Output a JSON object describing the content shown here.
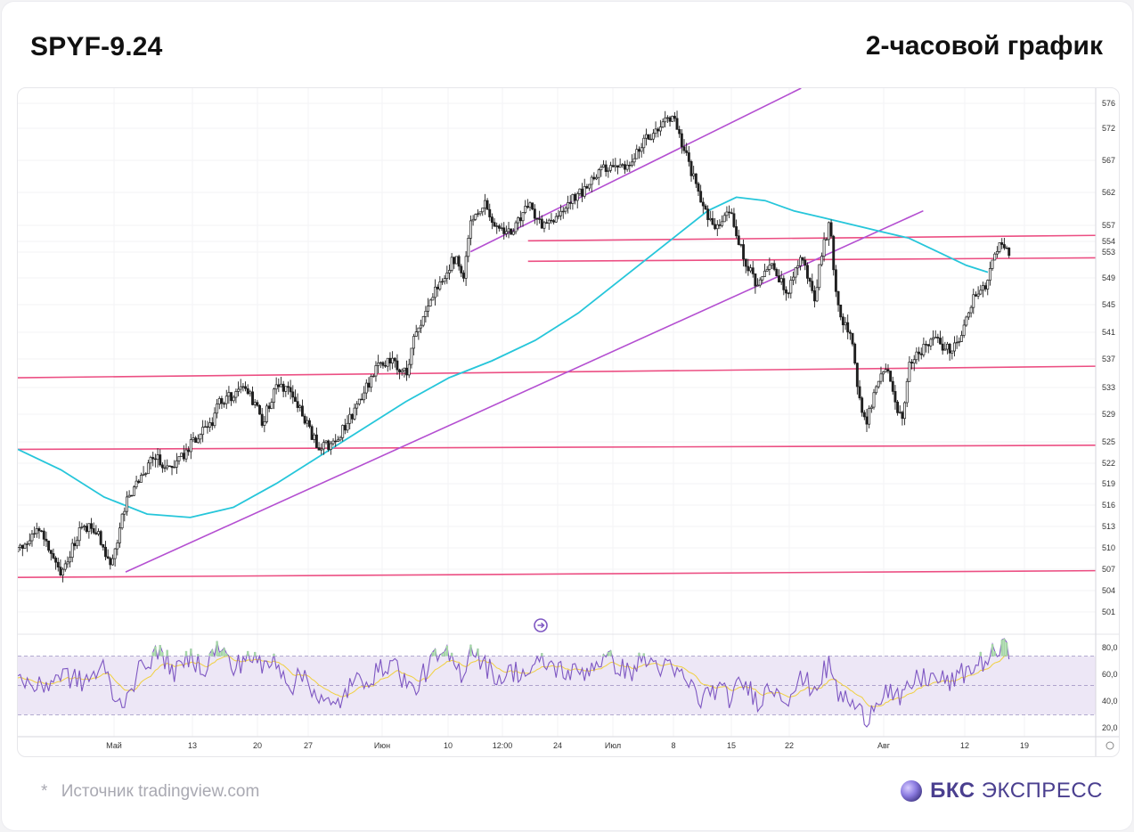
{
  "header": {
    "ticker": "SPYF-9.24",
    "timeframe": "2-часовой график"
  },
  "footer": {
    "source_star": "*",
    "source_text": "Источник tradingview.com",
    "brand_bold": "БКС",
    "brand_light": "ЭКСПРЕСС"
  },
  "colors": {
    "candles": "#1f1f1f",
    "ma_line": "#26c6da",
    "channel": "#b44fd1",
    "levels": "#ec4f83",
    "rsi_line": "#7e57c2",
    "rsi_signal": "#f0d040",
    "rsi_band": "#ede7f6",
    "brand": "#4a3f8f"
  },
  "chart_data": [
    {
      "type": "candlestick",
      "title": "",
      "instrument": "SPYF-9.24",
      "x_tick_labels": [
        "Май",
        "13",
        "20",
        "27",
        "Июн",
        "10",
        "12:00",
        "24",
        "Июл",
        "8",
        "15",
        "22",
        "Авг",
        "12",
        "19"
      ],
      "y_tick_labels": [
        "576",
        "572",
        "567",
        "562",
        "557",
        "554",
        "553",
        "549",
        "545",
        "541",
        "537",
        "533",
        "529",
        "525",
        "522",
        "519",
        "516",
        "513",
        "510",
        "507",
        "504",
        "501"
      ],
      "ylim": [
        498,
        578
      ],
      "price_path": [
        [
          0,
          510
        ],
        [
          3,
          513
        ],
        [
          6,
          507
        ],
        [
          9,
          514
        ],
        [
          11,
          513
        ],
        [
          13,
          508
        ],
        [
          15,
          517
        ],
        [
          17,
          521
        ],
        [
          19,
          524
        ],
        [
          21,
          522
        ],
        [
          23,
          524
        ],
        [
          25,
          527
        ],
        [
          27,
          529
        ],
        [
          28,
          532
        ],
        [
          30,
          533
        ],
        [
          32,
          534
        ],
        [
          34,
          529
        ],
        [
          36,
          534
        ],
        [
          38,
          534
        ],
        [
          40,
          529
        ],
        [
          42,
          525
        ],
        [
          44,
          526
        ],
        [
          46,
          529
        ],
        [
          48,
          533
        ],
        [
          50,
          537
        ],
        [
          52,
          538
        ],
        [
          54,
          536
        ],
        [
          55,
          541
        ],
        [
          57,
          546
        ],
        [
          58,
          548
        ],
        [
          60,
          552
        ],
        [
          61,
          553
        ],
        [
          62,
          550
        ],
        [
          63,
          559
        ],
        [
          65,
          561
        ],
        [
          67,
          557
        ],
        [
          69,
          557
        ],
        [
          71,
          561
        ],
        [
          73,
          558
        ],
        [
          75,
          559
        ],
        [
          77,
          562
        ],
        [
          79,
          563
        ],
        [
          81,
          566
        ],
        [
          83,
          567
        ],
        [
          85,
          566
        ],
        [
          87,
          570
        ],
        [
          89,
          572
        ],
        [
          91,
          574
        ],
        [
          93,
          568
        ],
        [
          95,
          562
        ],
        [
          97,
          557
        ],
        [
          99,
          560
        ],
        [
          100,
          557
        ],
        [
          101,
          553
        ],
        [
          103,
          549
        ],
        [
          105,
          552
        ],
        [
          107,
          548
        ],
        [
          109,
          553
        ],
        [
          111,
          547
        ],
        [
          112,
          555
        ],
        [
          113,
          558
        ],
        [
          114,
          546
        ],
        [
          116,
          541
        ],
        [
          117,
          533
        ],
        [
          118,
          529
        ],
        [
          120,
          536
        ],
        [
          121,
          537
        ],
        [
          122,
          532
        ],
        [
          123,
          529
        ],
        [
          124,
          537
        ],
        [
          126,
          540
        ],
        [
          128,
          541
        ],
        [
          130,
          539
        ],
        [
          132,
          544
        ],
        [
          133,
          547
        ],
        [
          134,
          548
        ],
        [
          135,
          550
        ],
        [
          136,
          554
        ],
        [
          137,
          555
        ],
        [
          138,
          553
        ]
      ],
      "moving_average": [
        [
          0,
          525
        ],
        [
          6,
          522
        ],
        [
          12,
          518
        ],
        [
          18,
          515.5
        ],
        [
          24,
          515
        ],
        [
          30,
          516.5
        ],
        [
          36,
          520
        ],
        [
          42,
          524
        ],
        [
          48,
          528
        ],
        [
          54,
          532
        ],
        [
          60,
          535.5
        ],
        [
          66,
          538
        ],
        [
          72,
          541
        ],
        [
          78,
          545
        ],
        [
          84,
          550
        ],
        [
          90,
          555
        ],
        [
          96,
          560
        ],
        [
          100,
          562
        ],
        [
          104,
          561.5
        ],
        [
          108,
          560
        ],
        [
          112,
          559
        ],
        [
          116,
          558
        ],
        [
          120,
          557
        ],
        [
          124,
          556
        ],
        [
          128,
          554
        ],
        [
          132,
          552
        ],
        [
          135,
          551
        ]
      ],
      "channel_lines": [
        {
          "from": [
            15,
            507
          ],
          "to": [
            126,
            560
          ]
        },
        {
          "from": [
            63,
            554
          ],
          "to": [
            109,
            578
          ]
        }
      ],
      "horizontal_levels": [
        {
          "from": [
            -1,
            535.5
          ],
          "to": [
            150,
            537.2
          ]
        },
        {
          "from": [
            -1,
            525
          ],
          "to": [
            150,
            525.6
          ]
        },
        {
          "from": [
            -1,
            506.2
          ],
          "to": [
            150,
            507.2
          ]
        },
        {
          "from": [
            71,
            555.6
          ],
          "to": [
            150,
            556.4
          ]
        },
        {
          "from": [
            71,
            552.6
          ],
          "to": [
            150,
            553.1
          ]
        }
      ]
    },
    {
      "type": "line",
      "title": "",
      "indicator": "rsi",
      "y_tick_labels": [
        "80,0",
        "60,0",
        "40,0",
        "20,0"
      ],
      "ylim": [
        15,
        85
      ],
      "band": [
        30,
        70
      ],
      "midline": 50,
      "values": [
        [
          0,
          55
        ],
        [
          3,
          48
        ],
        [
          6,
          58
        ],
        [
          9,
          52
        ],
        [
          12,
          62
        ],
        [
          14,
          35
        ],
        [
          16,
          52
        ],
        [
          18,
          68
        ],
        [
          20,
          72
        ],
        [
          22,
          58
        ],
        [
          24,
          70
        ],
        [
          26,
          62
        ],
        [
          28,
          78
        ],
        [
          30,
          60
        ],
        [
          32,
          72
        ],
        [
          34,
          62
        ],
        [
          36,
          68
        ],
        [
          38,
          50
        ],
        [
          40,
          58
        ],
        [
          42,
          40
        ],
        [
          44,
          34
        ],
        [
          46,
          48
        ],
        [
          48,
          55
        ],
        [
          50,
          58
        ],
        [
          52,
          68
        ],
        [
          54,
          52
        ],
        [
          55,
          45
        ],
        [
          57,
          62
        ],
        [
          58,
          68
        ],
        [
          60,
          70
        ],
        [
          61,
          62
        ],
        [
          62,
          58
        ],
        [
          63,
          78
        ],
        [
          65,
          64
        ],
        [
          67,
          55
        ],
        [
          69,
          60
        ],
        [
          71,
          58
        ],
        [
          73,
          66
        ],
        [
          75,
          62
        ],
        [
          77,
          58
        ],
        [
          79,
          60
        ],
        [
          81,
          68
        ],
        [
          83,
          66
        ],
        [
          85,
          58
        ],
        [
          87,
          68
        ],
        [
          89,
          64
        ],
        [
          91,
          60
        ],
        [
          93,
          54
        ],
        [
          95,
          40
        ],
        [
          97,
          48
        ],
        [
          99,
          42
        ],
        [
          101,
          52
        ],
        [
          103,
          40
        ],
        [
          105,
          50
        ],
        [
          107,
          42
        ],
        [
          109,
          54
        ],
        [
          111,
          48
        ],
        [
          112,
          58
        ],
        [
          113,
          64
        ],
        [
          114,
          45
        ],
        [
          116,
          38
        ],
        [
          117,
          32
        ],
        [
          118,
          28
        ],
        [
          120,
          44
        ],
        [
          121,
          48
        ],
        [
          122,
          42
        ],
        [
          123,
          38
        ],
        [
          124,
          50
        ],
        [
          126,
          56
        ],
        [
          128,
          54
        ],
        [
          130,
          52
        ],
        [
          132,
          60
        ],
        [
          133,
          62
        ],
        [
          134,
          66
        ],
        [
          135,
          68
        ],
        [
          136,
          72
        ],
        [
          137,
          76
        ],
        [
          138,
          74
        ]
      ]
    }
  ]
}
